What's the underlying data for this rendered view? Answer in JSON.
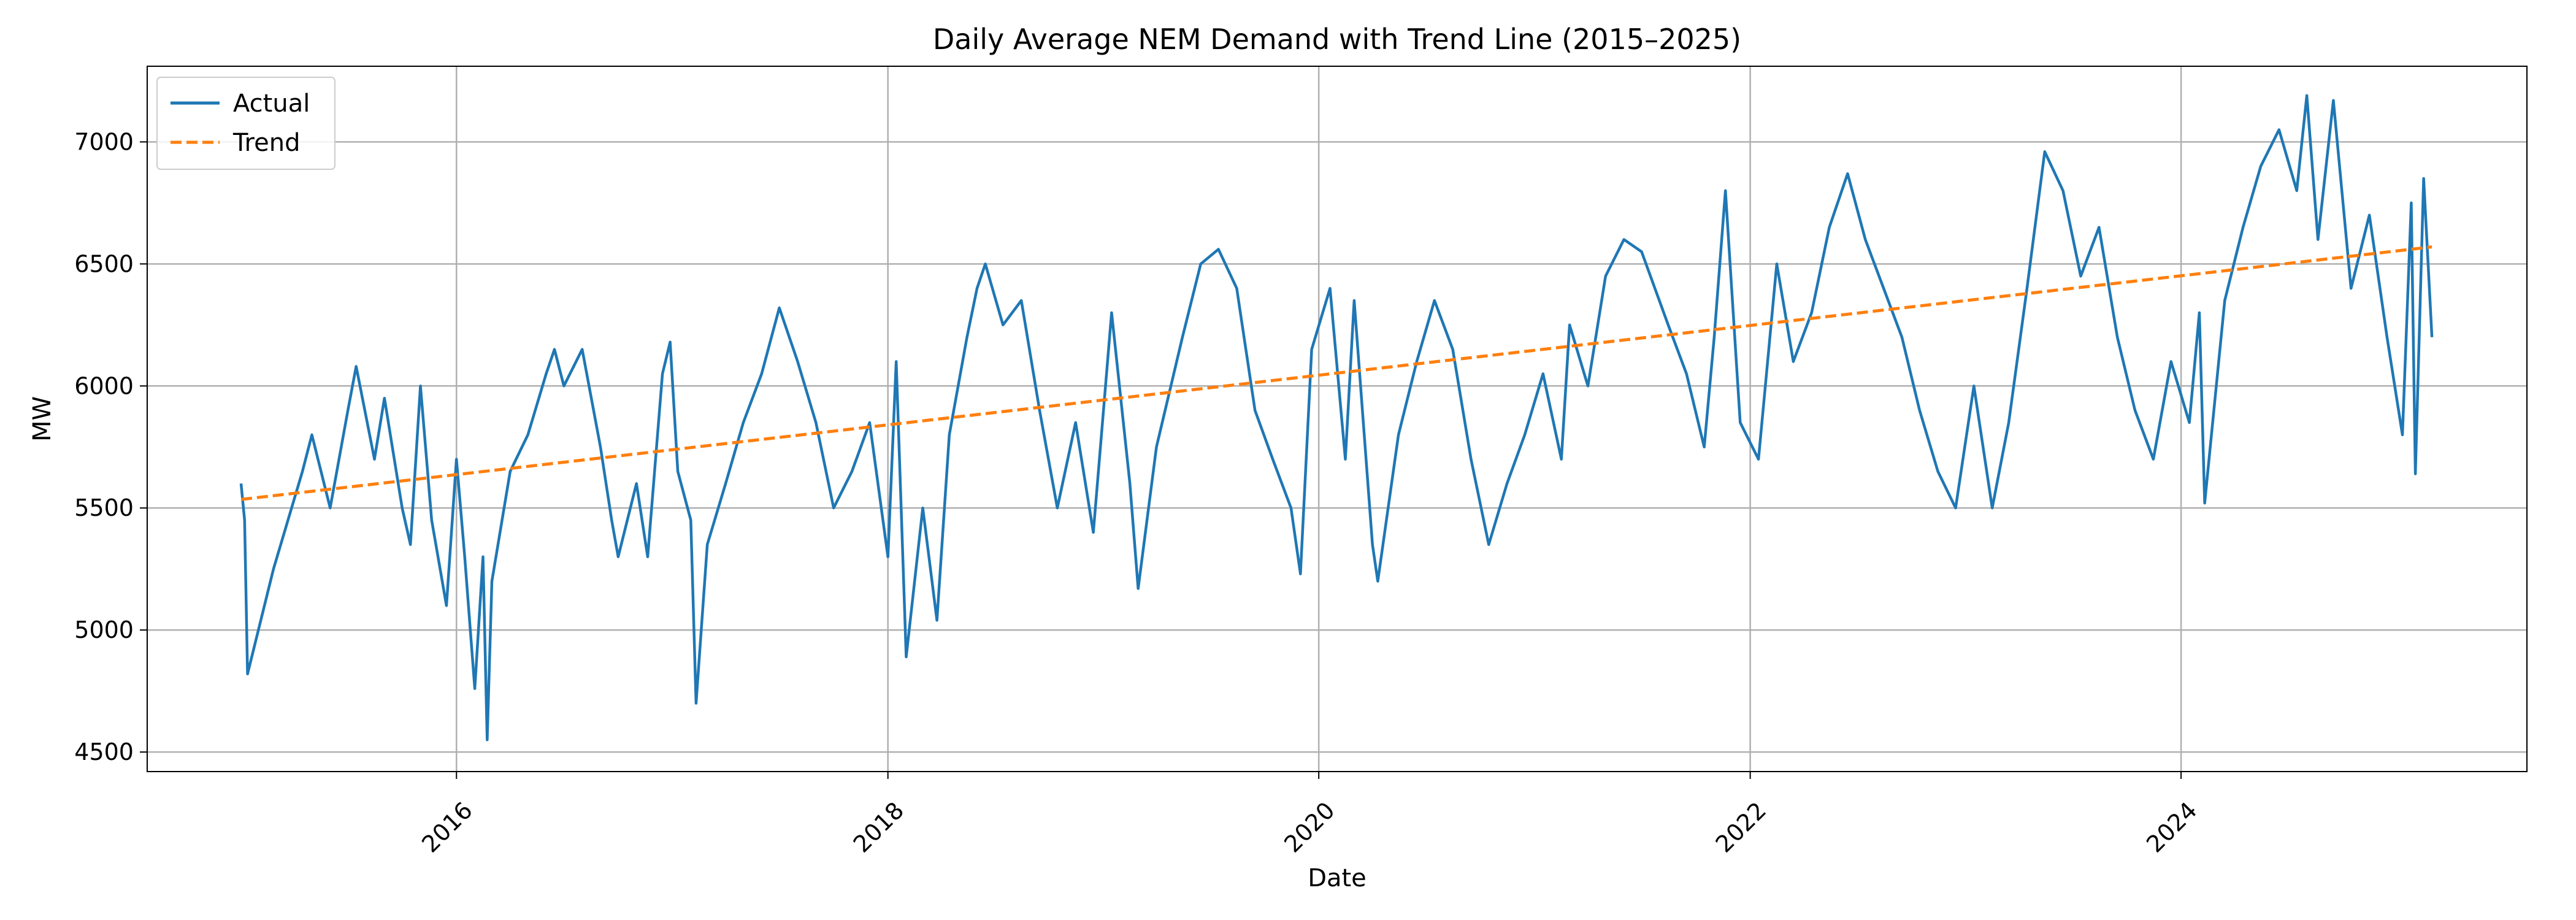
{
  "chart_data": {
    "type": "line",
    "title": "Daily Average NEM Demand with Trend Line (2015–2025)",
    "xlabel": "Date",
    "ylabel": "MW",
    "x_ticks": [
      "2016",
      "2018",
      "2020",
      "2022",
      "2024"
    ],
    "y_ticks": [
      4500,
      5000,
      5500,
      6000,
      6500,
      7000
    ],
    "xlim": [
      "2014-07-26",
      "2025-08-09"
    ],
    "ylim": [
      4420,
      7310
    ],
    "grid": true,
    "legend_position": "top-left",
    "series": [
      {
        "name": "Actual",
        "color": "#1f77b4",
        "style": "solid",
        "points": [
          [
            "2015-01-01",
            5600
          ],
          [
            "2015-01-07",
            5450
          ],
          [
            "2015-01-12",
            4820
          ],
          [
            "2015-02-25",
            5250
          ],
          [
            "2015-04-15",
            5650
          ],
          [
            "2015-05-01",
            5800
          ],
          [
            "2015-06-01",
            5500
          ],
          [
            "2015-07-01",
            5900
          ],
          [
            "2015-07-15",
            6080
          ],
          [
            "2015-08-15",
            5700
          ],
          [
            "2015-09-01",
            5950
          ],
          [
            "2015-10-01",
            5500
          ],
          [
            "2015-10-15",
            5350
          ],
          [
            "2015-11-01",
            6000
          ],
          [
            "2015-11-20",
            5450
          ],
          [
            "2015-12-15",
            5100
          ],
          [
            "2016-01-01",
            5700
          ],
          [
            "2016-01-15",
            5300
          ],
          [
            "2016-02-01",
            4760
          ],
          [
            "2016-02-15",
            5300
          ],
          [
            "2016-02-22",
            4550
          ],
          [
            "2016-03-01",
            5200
          ],
          [
            "2016-04-01",
            5650
          ],
          [
            "2016-05-01",
            5800
          ],
          [
            "2016-06-01",
            6050
          ],
          [
            "2016-06-15",
            6150
          ],
          [
            "2016-07-01",
            6000
          ],
          [
            "2016-08-01",
            6150
          ],
          [
            "2016-09-01",
            5750
          ],
          [
            "2016-09-20",
            5450
          ],
          [
            "2016-10-01",
            5300
          ],
          [
            "2016-11-01",
            5600
          ],
          [
            "2016-11-20",
            5300
          ],
          [
            "2016-12-15",
            6050
          ],
          [
            "2016-12-28",
            6180
          ],
          [
            "2017-01-10",
            5650
          ],
          [
            "2017-02-01",
            5450
          ],
          [
            "2017-02-10",
            4700
          ],
          [
            "2017-03-01",
            5350
          ],
          [
            "2017-04-01",
            5600
          ],
          [
            "2017-05-01",
            5850
          ],
          [
            "2017-06-01",
            6050
          ],
          [
            "2017-07-01",
            6320
          ],
          [
            "2017-08-01",
            6100
          ],
          [
            "2017-09-01",
            5850
          ],
          [
            "2017-10-01",
            5500
          ],
          [
            "2017-11-01",
            5650
          ],
          [
            "2017-12-01",
            5850
          ],
          [
            "2018-01-01",
            5300
          ],
          [
            "2018-01-15",
            6100
          ],
          [
            "2018-02-01",
            4890
          ],
          [
            "2018-03-01",
            5500
          ],
          [
            "2018-03-25",
            5040
          ],
          [
            "2018-04-15",
            5800
          ],
          [
            "2018-05-15",
            6200
          ],
          [
            "2018-06-01",
            6400
          ],
          [
            "2018-06-15",
            6500
          ],
          [
            "2018-07-15",
            6250
          ],
          [
            "2018-08-15",
            6350
          ],
          [
            "2018-09-15",
            5900
          ],
          [
            "2018-10-15",
            5500
          ],
          [
            "2018-11-15",
            5850
          ],
          [
            "2018-12-15",
            5400
          ],
          [
            "2019-01-15",
            6300
          ],
          [
            "2019-02-15",
            5600
          ],
          [
            "2019-03-01",
            5170
          ],
          [
            "2019-04-01",
            5750
          ],
          [
            "2019-05-15",
            6200
          ],
          [
            "2019-06-15",
            6500
          ],
          [
            "2019-07-15",
            6560
          ],
          [
            "2019-08-15",
            6400
          ],
          [
            "2019-09-15",
            5900
          ],
          [
            "2019-10-15",
            5700
          ],
          [
            "2019-11-15",
            5500
          ],
          [
            "2019-12-01",
            5230
          ],
          [
            "2019-12-20",
            6150
          ],
          [
            "2020-01-20",
            6400
          ],
          [
            "2020-02-15",
            5700
          ],
          [
            "2020-03-01",
            6350
          ],
          [
            "2020-04-01",
            5350
          ],
          [
            "2020-04-10",
            5200
          ],
          [
            "2020-05-15",
            5800
          ],
          [
            "2020-06-15",
            6100
          ],
          [
            "2020-07-15",
            6350
          ],
          [
            "2020-08-15",
            6150
          ],
          [
            "2020-09-15",
            5700
          ],
          [
            "2020-10-15",
            5350
          ],
          [
            "2020-11-15",
            5600
          ],
          [
            "2020-12-15",
            5800
          ],
          [
            "2021-01-15",
            6050
          ],
          [
            "2021-02-15",
            5700
          ],
          [
            "2021-03-01",
            6250
          ],
          [
            "2021-04-01",
            6000
          ],
          [
            "2021-05-01",
            6450
          ],
          [
            "2021-06-01",
            6600
          ],
          [
            "2021-07-01",
            6550
          ],
          [
            "2021-08-15",
            6250
          ],
          [
            "2021-09-15",
            6050
          ],
          [
            "2021-10-15",
            5750
          ],
          [
            "2021-11-01",
            6200
          ],
          [
            "2021-11-20",
            6800
          ],
          [
            "2021-12-15",
            5850
          ],
          [
            "2022-01-15",
            5700
          ],
          [
            "2022-02-15",
            6500
          ],
          [
            "2022-03-15",
            6100
          ],
          [
            "2022-04-15",
            6300
          ],
          [
            "2022-05-15",
            6650
          ],
          [
            "2022-06-15",
            6870
          ],
          [
            "2022-07-15",
            6600
          ],
          [
            "2022-08-15",
            6400
          ],
          [
            "2022-09-15",
            6200
          ],
          [
            "2022-10-15",
            5900
          ],
          [
            "2022-11-15",
            5650
          ],
          [
            "2022-12-15",
            5500
          ],
          [
            "2023-01-15",
            6000
          ],
          [
            "2023-02-15",
            5500
          ],
          [
            "2023-03-15",
            5850
          ],
          [
            "2023-04-15",
            6400
          ],
          [
            "2023-05-15",
            6960
          ],
          [
            "2023-06-15",
            6800
          ],
          [
            "2023-07-15",
            6450
          ],
          [
            "2023-08-15",
            6650
          ],
          [
            "2023-09-15",
            6200
          ],
          [
            "2023-10-15",
            5900
          ],
          [
            "2023-11-15",
            5700
          ],
          [
            "2023-12-15",
            6100
          ],
          [
            "2024-01-15",
            5850
          ],
          [
            "2024-02-01",
            6300
          ],
          [
            "2024-02-10",
            5520
          ],
          [
            "2024-03-15",
            6350
          ],
          [
            "2024-04-15",
            6650
          ],
          [
            "2024-05-15",
            6900
          ],
          [
            "2024-06-15",
            7050
          ],
          [
            "2024-07-15",
            6800
          ],
          [
            "2024-08-01",
            7190
          ],
          [
            "2024-08-20",
            6600
          ],
          [
            "2024-09-15",
            7170
          ],
          [
            "2024-10-15",
            6400
          ],
          [
            "2024-11-15",
            6700
          ],
          [
            "2024-12-15",
            6200
          ],
          [
            "2025-01-10",
            5800
          ],
          [
            "2025-01-25",
            6750
          ],
          [
            "2025-02-01",
            5640
          ],
          [
            "2025-02-15",
            6850
          ],
          [
            "2025-03-01",
            6200
          ]
        ]
      },
      {
        "name": "Trend",
        "color": "#ff7f0e",
        "style": "dashed",
        "points": [
          [
            "2015-01-01",
            5535
          ],
          [
            "2025-03-01",
            6570
          ]
        ]
      }
    ]
  }
}
